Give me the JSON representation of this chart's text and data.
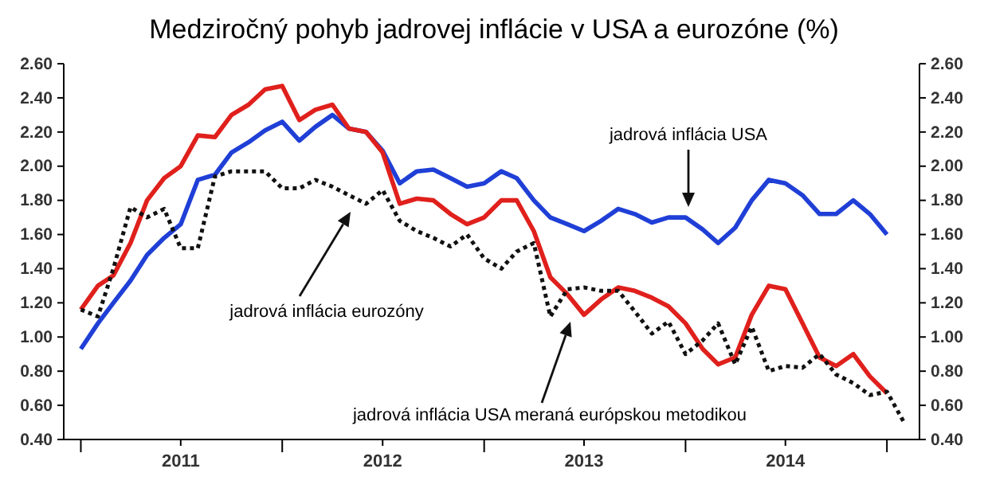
{
  "chart_data": {
    "type": "line",
    "title": "Medziročný pohyb jadrovej inflácie v USA a eurozóne (%)",
    "x": [
      "2011-01",
      "2011-02",
      "2011-03",
      "2011-04",
      "2011-05",
      "2011-06",
      "2011-07",
      "2011-08",
      "2011-09",
      "2011-10",
      "2011-11",
      "2011-12",
      "2012-01",
      "2012-02",
      "2012-03",
      "2012-04",
      "2012-05",
      "2012-06",
      "2012-07",
      "2012-08",
      "2012-09",
      "2012-10",
      "2012-11",
      "2012-12",
      "2013-01",
      "2013-02",
      "2013-03",
      "2013-04",
      "2013-05",
      "2013-06",
      "2013-07",
      "2013-08",
      "2013-09",
      "2013-10",
      "2013-11",
      "2013-12",
      "2014-01",
      "2014-02",
      "2014-03",
      "2014-04",
      "2014-05",
      "2014-06",
      "2014-07",
      "2014-08",
      "2014-09",
      "2014-10",
      "2014-11",
      "2014-12",
      "2015-01"
    ],
    "series": [
      {
        "color": "#1f3fd6",
        "values": [
          0.93,
          1.08,
          1.2,
          1.33,
          1.48,
          1.58,
          1.66,
          1.92,
          1.95,
          2.08,
          2.14,
          2.21,
          2.26,
          2.15,
          2.23,
          2.3,
          2.22,
          2.2,
          2.09,
          1.9,
          1.97,
          1.98,
          1.93,
          1.88,
          1.9,
          1.97,
          1.93,
          1.8,
          1.7,
          1.66,
          1.62,
          1.68,
          1.75,
          1.72,
          1.67,
          1.7,
          1.7,
          1.63,
          1.55,
          1.64,
          1.8,
          1.92,
          1.9,
          1.83,
          1.72,
          1.72,
          1.8,
          1.72,
          1.6
        ]
      },
      {
        "color": "#e0201c",
        "values": [
          1.16,
          1.3,
          1.36,
          1.55,
          1.8,
          1.93,
          2.0,
          2.18,
          2.17,
          2.3,
          2.36,
          2.45,
          2.47,
          2.27,
          2.33,
          2.36,
          2.22,
          2.2,
          2.08,
          1.78,
          1.81,
          1.8,
          1.72,
          1.66,
          1.7,
          1.8,
          1.8,
          1.62,
          1.35,
          1.25,
          1.13,
          1.22,
          1.29,
          1.27,
          1.23,
          1.18,
          1.08,
          0.93,
          0.84,
          0.88,
          1.13,
          1.3,
          1.28,
          1.08,
          0.88,
          0.83,
          0.9,
          0.77,
          0.67
        ]
      },
      {
        "color": "#111111",
        "line_style": "dotted",
        "x": [
          "2011-01",
          "2011-02",
          "2011-03",
          "2011-04",
          "2011-05",
          "2011-06",
          "2011-07",
          "2011-08",
          "2011-09",
          "2011-10",
          "2011-11",
          "2011-12",
          "2012-01",
          "2012-02",
          "2012-03",
          "2012-04",
          "2012-05",
          "2012-06",
          "2012-07",
          "2012-08",
          "2012-09",
          "2012-10",
          "2012-11",
          "2012-12",
          "2013-01",
          "2013-02",
          "2013-03",
          "2013-04",
          "2013-05",
          "2013-06",
          "2013-07",
          "2013-08",
          "2013-09",
          "2013-10",
          "2013-11",
          "2013-12",
          "2014-01",
          "2014-02",
          "2014-03",
          "2014-04",
          "2014-05",
          "2014-06",
          "2014-07",
          "2014-08",
          "2014-09",
          "2014-10",
          "2014-11",
          "2014-12",
          "2015-01",
          "2015-02"
        ],
        "values": [
          1.16,
          1.12,
          1.4,
          1.76,
          1.7,
          1.75,
          1.52,
          1.52,
          1.94,
          1.97,
          1.97,
          1.97,
          1.87,
          1.87,
          1.92,
          1.88,
          1.83,
          1.78,
          1.86,
          1.68,
          1.62,
          1.58,
          1.53,
          1.6,
          1.46,
          1.4,
          1.5,
          1.55,
          1.12,
          1.28,
          1.29,
          1.27,
          1.27,
          1.15,
          1.02,
          1.09,
          0.9,
          0.98,
          1.08,
          0.84,
          1.06,
          0.8,
          0.83,
          0.82,
          0.9,
          0.78,
          0.73,
          0.66,
          0.68,
          0.5
        ]
      }
    ],
    "annotations": [
      "jadrová inflácia USA",
      "jadrová inflácia eurozóny",
      "jadrová inflácia USA meraná európskou metodikou"
    ],
    "xlim": [
      "2010-12",
      "2015-03"
    ],
    "xticks": [
      {
        "value": "2011-01",
        "label": null
      },
      {
        "value": "2011-07",
        "label": "2011"
      },
      {
        "value": "2012-01",
        "label": null
      },
      {
        "value": "2012-07",
        "label": "2012"
      },
      {
        "value": "2013-01",
        "label": null
      },
      {
        "value": "2013-07",
        "label": "2013"
      },
      {
        "value": "2014-01",
        "label": null
      },
      {
        "value": "2014-07",
        "label": "2014"
      },
      {
        "value": "2015-01",
        "label": null
      }
    ],
    "ylim": [
      0.4,
      2.6
    ],
    "yticks": [
      {
        "value": 0.4,
        "label": "0.40"
      },
      {
        "value": 0.6,
        "label": "0.60"
      },
      {
        "value": 0.8,
        "label": "0.80"
      },
      {
        "value": 1.0,
        "label": "1.00"
      },
      {
        "value": 1.2,
        "label": "1.20"
      },
      {
        "value": 1.4,
        "label": "1.40"
      },
      {
        "value": 1.6,
        "label": "1.60"
      },
      {
        "value": 1.8,
        "label": "1.80"
      },
      {
        "value": 2.0,
        "label": "2.00"
      },
      {
        "value": 2.2,
        "label": "2.20"
      },
      {
        "value": 2.4,
        "label": "2.40"
      },
      {
        "value": 2.6,
        "label": "2.60"
      }
    ],
    "y2lim": [
      0.4,
      2.6
    ],
    "y2ticks": [
      {
        "value": 0.4,
        "label": "0.40"
      },
      {
        "value": 0.6,
        "label": "0.60"
      },
      {
        "value": 0.8,
        "label": "0.80"
      },
      {
        "value": 1.0,
        "label": "1.00"
      },
      {
        "value": 1.2,
        "label": "1.20"
      },
      {
        "value": 1.4,
        "label": "1.40"
      },
      {
        "value": 1.6,
        "label": "1.60"
      },
      {
        "value": 1.8,
        "label": "1.80"
      },
      {
        "value": 2.0,
        "label": "2.00"
      },
      {
        "value": 2.2,
        "label": "2.20"
      },
      {
        "value": 2.4,
        "label": "2.40"
      },
      {
        "value": 2.6,
        "label": "2.60"
      }
    ],
    "grid": false
  }
}
